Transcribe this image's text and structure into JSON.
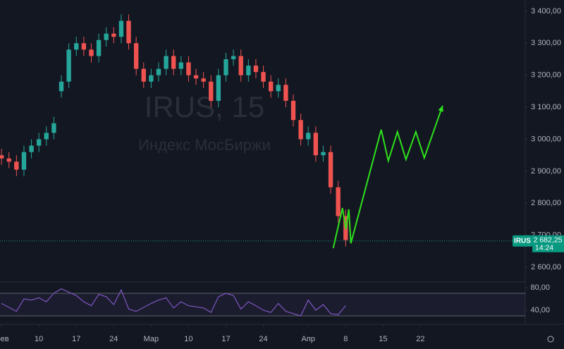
{
  "chart_data": {
    "type": "candlestick",
    "title": "IRUS, 15",
    "subtitle": "Индекс МосБиржи",
    "x": [
      0,
      1,
      2,
      3,
      4,
      5,
      6,
      7,
      8,
      9,
      10,
      11,
      12,
      13,
      14,
      15,
      16,
      17,
      18,
      19,
      20,
      21,
      22,
      23,
      24,
      25,
      26,
      27,
      28,
      29,
      30,
      31,
      32,
      33,
      34,
      35,
      36,
      37,
      38,
      39,
      40,
      41,
      42,
      43,
      44,
      45,
      46
    ],
    "open": [
      2950,
      2940,
      2930,
      2905,
      2960,
      2980,
      3000,
      3020,
      3150,
      3180,
      3280,
      3300,
      3280,
      3260,
      3310,
      3330,
      3320,
      3370,
      3300,
      3220,
      3180,
      3200,
      3220,
      3260,
      3220,
      3240,
      3200,
      3190,
      3180,
      3120,
      3200,
      3250,
      3260,
      3200,
      3230,
      3210,
      3180,
      3150,
      3170,
      3120,
      3060,
      3000,
      3020,
      2950,
      2960,
      2850,
      2760
    ],
    "high": [
      2970,
      2960,
      2950,
      2980,
      3000,
      3020,
      3040,
      3070,
      3200,
      3300,
      3320,
      3320,
      3300,
      3330,
      3350,
      3350,
      3390,
      3390,
      3320,
      3240,
      3220,
      3240,
      3280,
      3280,
      3260,
      3260,
      3220,
      3210,
      3200,
      3220,
      3270,
      3280,
      3280,
      3250,
      3250,
      3230,
      3200,
      3190,
      3190,
      3140,
      3080,
      3040,
      3040,
      2980,
      2980,
      2870,
      2780
    ],
    "low": [
      2920,
      2910,
      2885,
      2885,
      2940,
      2960,
      2980,
      3000,
      3130,
      3160,
      3260,
      3260,
      3240,
      3240,
      3290,
      3300,
      3300,
      3280,
      3200,
      3160,
      3160,
      3180,
      3200,
      3200,
      3200,
      3180,
      3170,
      3160,
      3100,
      3100,
      3180,
      3230,
      3180,
      3180,
      3190,
      3160,
      3130,
      3130,
      3100,
      3040,
      2980,
      2980,
      2930,
      2930,
      2830,
      2740,
      2665
    ],
    "close": [
      2940,
      2930,
      2905,
      2960,
      2980,
      3000,
      3020,
      3050,
      3180,
      3280,
      3300,
      3280,
      3260,
      3310,
      3330,
      3320,
      3370,
      3300,
      3220,
      3180,
      3200,
      3220,
      3260,
      3220,
      3240,
      3200,
      3190,
      3180,
      3120,
      3200,
      3250,
      3260,
      3200,
      3230,
      3210,
      3180,
      3150,
      3170,
      3120,
      3060,
      3000,
      3020,
      2950,
      2960,
      2850,
      2760,
      2685
    ],
    "up_color": "#26a69a",
    "down_color": "#ef5350",
    "xlim": [
      -0.2,
      70
    ],
    "xticks": [
      {
        "value": 0,
        "label": "фев"
      },
      {
        "value": 5,
        "label": "10"
      },
      {
        "value": 10,
        "label": "17"
      },
      {
        "value": 15,
        "label": "24"
      },
      {
        "value": 20,
        "label": "Мар"
      },
      {
        "value": 25,
        "label": "10"
      },
      {
        "value": 30,
        "label": "17"
      },
      {
        "value": 35,
        "label": "24"
      },
      {
        "value": 41,
        "label": "Апр"
      },
      {
        "value": 46,
        "label": "8"
      },
      {
        "value": 51,
        "label": "15"
      },
      {
        "value": 56,
        "label": "22"
      }
    ],
    "ylim": [
      2565,
      3435
    ],
    "yticks": [
      {
        "value": 2600,
        "label": "2 600,00"
      },
      {
        "value": 2700,
        "label": "2 700,00"
      },
      {
        "value": 2800,
        "label": "2 800,00"
      },
      {
        "value": 2900,
        "label": "2 900,00"
      },
      {
        "value": 3000,
        "label": "3 000,00"
      },
      {
        "value": 3100,
        "label": "3 100,00"
      },
      {
        "value": 3200,
        "label": "3 200,00"
      },
      {
        "value": 3300,
        "label": "3 300,00"
      },
      {
        "value": 3400,
        "label": "3 400,00"
      }
    ],
    "last_price": {
      "symbol": "IRUS",
      "value": 2682.25,
      "label": "2 682,25",
      "countdown": "14:24",
      "color": "#089981"
    },
    "forecast": {
      "color": "#2ee01c",
      "x": [
        44.34,
        45.57,
        46.04,
        46.42,
        46.7,
        50.75,
        51.7,
        52.92,
        54.06,
        55.38,
        56.51,
        58.96
      ],
      "values": [
        2660,
        2785,
        2719,
        2781,
        2675,
        3030,
        2933,
        3023,
        2937,
        3023,
        2942,
        3105
      ]
    },
    "rsi": {
      "color": "#7e57c2",
      "ylim": [
        17.5,
        90
      ],
      "yticks": [
        {
          "value": 40,
          "label": "40,00"
        },
        {
          "value": 80,
          "label": "80,00"
        }
      ],
      "bands": [
        30,
        70
      ],
      "values": [
        52,
        45,
        38,
        60,
        58,
        62,
        55,
        70,
        78,
        72,
        66,
        55,
        48,
        68,
        64,
        50,
        76,
        42,
        38,
        45,
        52,
        58,
        62,
        44,
        55,
        48,
        46,
        44,
        36,
        64,
        70,
        66,
        42,
        55,
        48,
        40,
        36,
        52,
        38,
        34,
        30,
        58,
        40,
        50,
        34,
        32,
        48
      ]
    }
  }
}
